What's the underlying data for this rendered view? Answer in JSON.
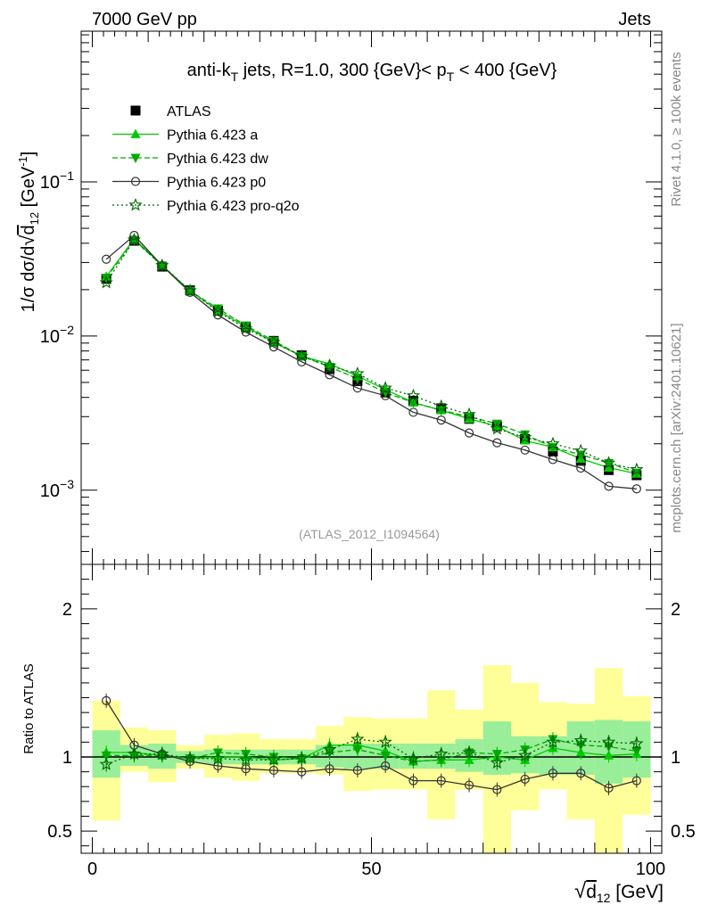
{
  "header": {
    "left": "7000 GeV pp",
    "right": "Jets",
    "side_top": "Rivet 4.1.0, ≥ 100k events",
    "side_bottom": "mcplots.cern.ch [arXiv:2401.10621]"
  },
  "chart_data": [
    {
      "type": "line",
      "panel": "main",
      "title": "anti-kT jets, R=1.0, 300 {GeV}< pT < 400 {GeV}",
      "title_parts": {
        "pre": "anti-k",
        "sub_t": "T",
        "mid": " jets, R=1.0, 300 {GeV}< p",
        "sub_t2": "T",
        "post": " < 400 {GeV}"
      },
      "analysis_label": "(ATLAS_2012_I1094564)",
      "ylabel": "1/σ dσ/d√d12 [GeV-1]",
      "yscale": "log",
      "ylim": [
        0.00033,
        0.95
      ],
      "xlim": [
        -2,
        102
      ],
      "y_tick_labels": [
        {
          "base": "10",
          "exp": "−3",
          "value": 0.001
        },
        {
          "base": "10",
          "exp": "−2",
          "value": 0.01
        },
        {
          "base": "10",
          "exp": "−1",
          "value": 0.1
        }
      ],
      "x": [
        2.5,
        7.5,
        12.5,
        17.5,
        22.5,
        27.5,
        32.5,
        37.5,
        42.5,
        47.5,
        52.5,
        57.5,
        62.5,
        67.5,
        72.5,
        77.5,
        82.5,
        87.5,
        92.5,
        97.5
      ],
      "series": [
        {
          "name": "ATLAS",
          "key": "atlas",
          "color": "#000000",
          "marker": "square",
          "values": [
            0.0235,
            0.0415,
            0.0282,
            0.0198,
            0.0146,
            0.0115,
            0.0093,
            0.0075,
            0.0061,
            0.0051,
            0.0043,
            0.0038,
            0.0034,
            0.0029,
            0.0026,
            0.00215,
            0.00178,
            0.00155,
            0.00135,
            0.00125
          ]
        },
        {
          "name": "Pythia 6.423 a",
          "key": "a",
          "color": "#00cc00",
          "marker": "triangle-up",
          "dash": "",
          "values": [
            0.0243,
            0.0427,
            0.0287,
            0.0197,
            0.0146,
            0.0115,
            0.0091,
            0.0074,
            0.0066,
            0.0055,
            0.0045,
            0.0037,
            0.0033,
            0.0029,
            0.0026,
            0.0021,
            0.0019,
            0.0016,
            0.0014,
            0.00128
          ]
        },
        {
          "name": "Pythia 6.423 dw",
          "key": "dw",
          "color": "#00aa00",
          "marker": "triangle-down",
          "dash": "6,3",
          "values": [
            0.0238,
            0.042,
            0.0285,
            0.0196,
            0.0151,
            0.0117,
            0.0093,
            0.0074,
            0.0063,
            0.0053,
            0.0043,
            0.0037,
            0.0033,
            0.003,
            0.0027,
            0.0023,
            0.0019,
            0.0017,
            0.0015,
            0.0013
          ]
        },
        {
          "name": "Pythia 6.423 p0",
          "key": "p0",
          "color": "#333333",
          "marker": "circle-open",
          "dash": "",
          "values": [
            0.0315,
            0.045,
            0.0286,
            0.0192,
            0.0137,
            0.0106,
            0.0085,
            0.0068,
            0.0056,
            0.0046,
            0.0041,
            0.0032,
            0.00285,
            0.00235,
            0.00203,
            0.00182,
            0.00158,
            0.00139,
            0.00106,
            0.00102
          ]
        },
        {
          "name": "Pythia 6.423 pro-q2o",
          "key": "q2o",
          "color": "#006600",
          "marker": "star-open",
          "dash": "2,3",
          "values": [
            0.0222,
            0.0421,
            0.0287,
            0.0197,
            0.0144,
            0.0112,
            0.0091,
            0.0074,
            0.0064,
            0.0057,
            0.0046,
            0.0041,
            0.0035,
            0.0031,
            0.0025,
            0.0022,
            0.002,
            0.0018,
            0.0015,
            0.00136
          ]
        }
      ],
      "legend_position": "top-left"
    },
    {
      "type": "line",
      "panel": "ratio",
      "ylabel": "Ratio to ATLAS",
      "xlabel": "√d12 [GeV]",
      "ylim": [
        0.35,
        2.3
      ],
      "xlim": [
        -2,
        102
      ],
      "x_tick_labels": [
        "0",
        "50",
        "100"
      ],
      "x_tick_values": [
        0,
        50,
        100
      ],
      "y_tick_labels": [
        "0.5",
        "1",
        "2"
      ],
      "y_tick_values": [
        0.5,
        1,
        2
      ],
      "x": [
        2.5,
        7.5,
        12.5,
        17.5,
        22.5,
        27.5,
        32.5,
        37.5,
        42.5,
        47.5,
        52.5,
        57.5,
        62.5,
        67.5,
        72.5,
        77.5,
        82.5,
        87.5,
        92.5,
        97.5
      ],
      "band_inner": [
        [
          0.86,
          1.18
        ],
        [
          0.94,
          1.08
        ],
        [
          0.92,
          1.09
        ],
        [
          0.96,
          1.04
        ],
        [
          0.95,
          1.05
        ],
        [
          0.95,
          1.05
        ],
        [
          0.95,
          1.05
        ],
        [
          0.95,
          1.05
        ],
        [
          0.93,
          1.08
        ],
        [
          0.92,
          1.09
        ],
        [
          0.92,
          1.09
        ],
        [
          0.92,
          1.09
        ],
        [
          0.92,
          1.09
        ],
        [
          0.9,
          1.12
        ],
        [
          0.88,
          1.24
        ],
        [
          0.89,
          1.14
        ],
        [
          0.88,
          1.14
        ],
        [
          0.88,
          1.24
        ],
        [
          0.82,
          1.25
        ],
        [
          0.86,
          1.24
        ]
      ],
      "band_outer": [
        [
          0.57,
          1.38
        ],
        [
          0.9,
          1.2
        ],
        [
          0.83,
          1.18
        ],
        [
          0.92,
          1.08
        ],
        [
          0.86,
          1.15
        ],
        [
          0.84,
          1.16
        ],
        [
          0.89,
          1.12
        ],
        [
          0.89,
          1.12
        ],
        [
          0.88,
          1.21
        ],
        [
          0.77,
          1.27
        ],
        [
          0.78,
          1.26
        ],
        [
          0.78,
          1.26
        ],
        [
          0.58,
          1.45
        ],
        [
          0.78,
          1.32
        ],
        [
          0.3,
          1.62
        ],
        [
          0.64,
          1.5
        ],
        [
          0.78,
          1.37
        ],
        [
          0.58,
          1.36
        ],
        [
          0.32,
          1.6
        ],
        [
          0.61,
          1.41
        ]
      ],
      "series": [
        {
          "key": "a",
          "values": [
            1.03,
            1.03,
            1.01,
            0.99,
            1.0,
            1.0,
            0.98,
            0.99,
            1.08,
            1.08,
            1.04,
            0.97,
            0.98,
            0.98,
            1.0,
            0.98,
            1.06,
            1.03,
            1.01,
            1.02
          ]
        },
        {
          "key": "dw",
          "values": [
            1.01,
            1.01,
            1.01,
            0.99,
            1.03,
            1.02,
            1.0,
            0.99,
            1.03,
            1.05,
            1.01,
            0.97,
            0.98,
            1.03,
            1.02,
            1.05,
            1.12,
            1.08,
            1.07,
            1.04
          ]
        },
        {
          "key": "p0",
          "values": [
            1.38,
            1.08,
            1.02,
            0.97,
            0.94,
            0.92,
            0.91,
            0.9,
            0.92,
            0.91,
            0.94,
            0.84,
            0.84,
            0.81,
            0.78,
            0.85,
            0.89,
            0.89,
            0.79,
            0.84
          ]
        },
        {
          "key": "q2o",
          "values": [
            0.95,
            1.02,
            1.02,
            0.99,
            0.99,
            0.98,
            0.98,
            0.99,
            1.05,
            1.12,
            1.1,
            0.99,
            1.02,
            1.03,
            0.96,
            1.01,
            1.1,
            1.11,
            1.1,
            1.09
          ]
        }
      ]
    }
  ]
}
